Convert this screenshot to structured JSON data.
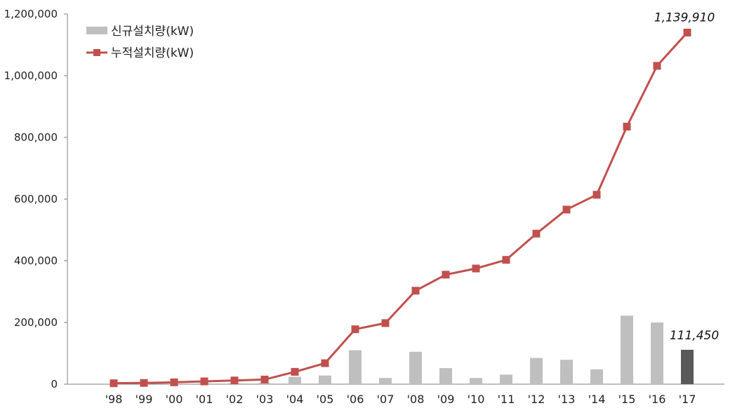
{
  "chart_data": {
    "type": "bar",
    "categories": [
      "'98",
      "'99",
      "'00",
      "'01",
      "'02",
      "'03",
      "'04",
      "'05",
      "'06",
      "'07",
      "'08",
      "'09",
      "'10",
      "'11",
      "'12",
      "'13",
      "'14",
      "'15",
      "'16",
      "'17"
    ],
    "ylim": [
      0,
      1200000
    ],
    "yticks": [
      0,
      200000,
      400000,
      600000,
      800000,
      1000000,
      1200000
    ],
    "ytick_labels": [
      "0",
      "200,000",
      "400,000",
      "600,000",
      "800,000",
      "1,000,000",
      "1,200,000"
    ],
    "series": [
      {
        "name": "신규설치량(kW)",
        "type": "bar",
        "color": "#bfbfbf",
        "highlight_color": "#595959",
        "values": [
          2000,
          1000,
          2000,
          3000,
          3000,
          4000,
          24000,
          28000,
          110000,
          20000,
          105000,
          52000,
          20000,
          31000,
          85000,
          79000,
          48000,
          222000,
          200000,
          111450
        ]
      },
      {
        "name": "누적설치량(kW)",
        "type": "line",
        "color": "#c0504d",
        "values": [
          3000,
          4000,
          6000,
          9000,
          12000,
          15000,
          40000,
          68000,
          178000,
          198000,
          303000,
          355000,
          375000,
          403000,
          488000,
          566000,
          614000,
          835000,
          1032000,
          1139910
        ]
      }
    ],
    "annotations": {
      "cumulative_last": "1,139,910",
      "new_last": "111,450"
    },
    "legend_position": "top-left",
    "grid": false
  }
}
